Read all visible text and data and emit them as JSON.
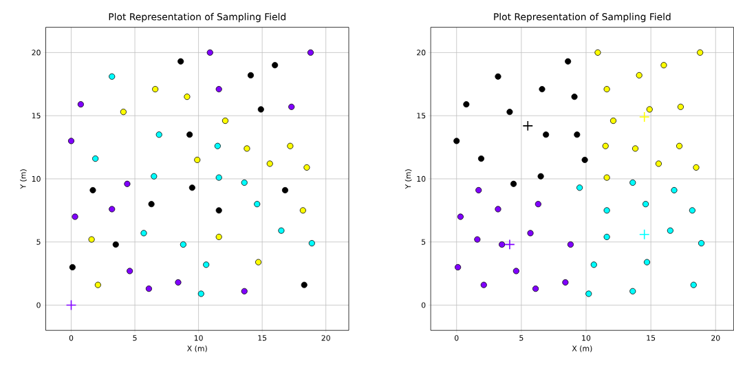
{
  "chart_data": [
    {
      "type": "scatter",
      "title": "Plot Representation of Sampling Field",
      "xlabel": "X (m)",
      "ylabel": "Y (m)",
      "xlim": [
        -2,
        21.8
      ],
      "ylim": [
        -2,
        22
      ],
      "xticks": [
        0,
        5,
        10,
        15,
        20
      ],
      "yticks": [
        0,
        5,
        10,
        15,
        20
      ],
      "grid": true,
      "series": [
        {
          "color": "#8000ff",
          "marker": "circle",
          "x": [
            10.9,
            18.8,
            11.6,
            0.75,
            17.3,
            0,
            4.4,
            3.2,
            0.3,
            4.6,
            6.1,
            8.4,
            13.6
          ],
          "values": [
            20,
            20,
            17.1,
            15.9,
            15.7,
            13.0,
            9.6,
            7.6,
            7.0,
            2.7,
            1.3,
            1.8,
            1.1
          ]
        },
        {
          "color": "#000000",
          "marker": "circle",
          "x": [
            8.6,
            14.1,
            16.0,
            14.9,
            9.3,
            1.7,
            9.5,
            16.8,
            6.3,
            11.6,
            3.5,
            0.1,
            18.3
          ],
          "values": [
            19.3,
            18.2,
            19.0,
            15.5,
            13.5,
            9.1,
            9.3,
            9.1,
            8.0,
            7.5,
            4.8,
            3.0,
            1.6
          ]
        },
        {
          "color": "#00ffff",
          "marker": "circle",
          "x": [
            3.2,
            6.9,
            11.5,
            1.9,
            6.5,
            11.6,
            13.6,
            14.6,
            5.7,
            16.5,
            8.8,
            18.9,
            10.6,
            10.2
          ],
          "values": [
            18.1,
            13.5,
            12.6,
            11.6,
            10.2,
            10.1,
            9.7,
            8.0,
            5.7,
            5.9,
            4.8,
            4.9,
            3.2,
            0.9
          ]
        },
        {
          "color": "#ffff00",
          "marker": "circle",
          "x": [
            6.6,
            9.1,
            4.1,
            12.1,
            13.8,
            17.2,
            9.9,
            15.6,
            18.5,
            18.2,
            11.6,
            1.6,
            14.7,
            2.1
          ],
          "values": [
            17.1,
            16.5,
            15.3,
            14.6,
            12.4,
            12.6,
            11.5,
            11.2,
            10.9,
            7.5,
            5.4,
            5.2,
            3.4,
            1.6
          ]
        },
        {
          "color": "#8000ff",
          "marker": "cross",
          "x": [
            0
          ],
          "values": [
            0
          ]
        }
      ]
    },
    {
      "type": "scatter",
      "title": "Plot Representation of Sampling Field",
      "xlabel": "X (m)",
      "ylabel": "Y (m)",
      "xlim": [
        -2,
        21.4
      ],
      "ylim": [
        -2,
        22
      ],
      "xticks": [
        0,
        5,
        10,
        15,
        20
      ],
      "yticks": [
        0,
        5,
        10,
        15,
        20
      ],
      "grid": true,
      "series": [
        {
          "color": "#000000",
          "marker": "circle",
          "x": [
            8.6,
            3.2,
            6.6,
            9.1,
            0.75,
            4.1,
            6.9,
            9.3,
            0,
            1.9,
            9.9,
            6.5,
            4.4
          ],
          "values": [
            19.3,
            18.1,
            17.1,
            16.5,
            15.9,
            15.3,
            13.5,
            13.5,
            13.0,
            11.6,
            11.5,
            10.2,
            9.6
          ]
        },
        {
          "color": "#ffff00",
          "marker": "circle",
          "x": [
            10.9,
            18.8,
            14.1,
            16.0,
            11.6,
            14.9,
            17.3,
            12.1,
            11.5,
            13.8,
            17.2,
            15.6,
            18.5,
            11.6
          ],
          "values": [
            20,
            20,
            18.2,
            19.0,
            17.1,
            15.5,
            15.7,
            14.6,
            12.6,
            12.4,
            12.6,
            11.2,
            10.9,
            10.1
          ]
        },
        {
          "color": "#00ffff",
          "marker": "circle",
          "x": [
            9.5,
            13.6,
            16.8,
            11.6,
            14.6,
            18.2,
            11.6,
            16.5,
            18.9,
            10.6,
            14.7,
            10.2,
            13.6,
            18.3
          ],
          "values": [
            9.3,
            9.7,
            9.1,
            7.5,
            8.0,
            7.5,
            5.4,
            5.9,
            4.9,
            3.2,
            3.4,
            0.9,
            1.1,
            1.6
          ]
        },
        {
          "color": "#8000ff",
          "marker": "circle",
          "x": [
            1.7,
            3.2,
            6.3,
            0.3,
            5.7,
            1.6,
            3.5,
            8.8,
            0.1,
            4.6,
            2.1,
            6.1,
            8.4
          ],
          "values": [
            9.1,
            7.6,
            8.0,
            7.0,
            5.7,
            5.2,
            4.8,
            4.8,
            3.0,
            2.7,
            1.6,
            1.3,
            1.8
          ]
        },
        {
          "color": "#000000",
          "marker": "cross",
          "x": [
            5.5
          ],
          "values": [
            14.2
          ]
        },
        {
          "color": "#ffff00",
          "marker": "cross",
          "x": [
            14.5
          ],
          "values": [
            14.9
          ]
        },
        {
          "color": "#8000ff",
          "marker": "cross",
          "x": [
            4.1
          ],
          "values": [
            4.8
          ]
        },
        {
          "color": "#00ffff",
          "marker": "cross",
          "x": [
            14.5
          ],
          "values": [
            5.6
          ]
        }
      ]
    }
  ]
}
